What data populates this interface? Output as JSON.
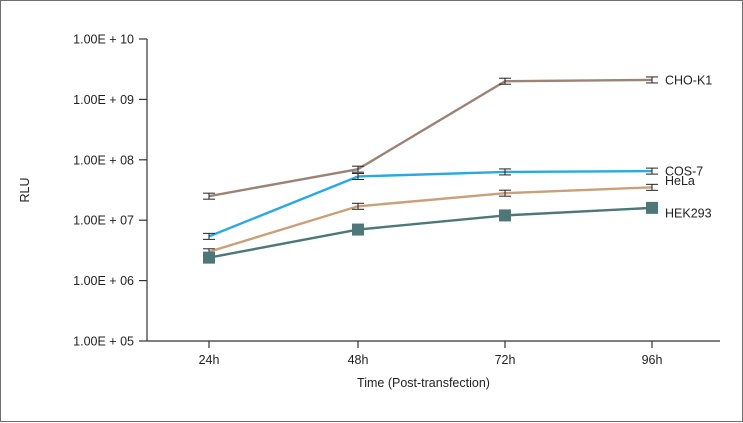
{
  "chart_data": {
    "type": "line",
    "title": "",
    "xlabel": "Time (Post-transfection)",
    "ylabel": "RLU",
    "y_scale": "log",
    "ylim": [
      100000,
      10000000000
    ],
    "categories": [
      "24h",
      "48h",
      "72h",
      "96h"
    ],
    "y_tick_values": [
      100000,
      1000000,
      10000000,
      100000000,
      1000000000,
      10000000000
    ],
    "y_tick_labels": [
      "1.00E + 05",
      "1.00E + 06",
      "1.00E + 07",
      "1.00E + 08",
      "1.00E + 09",
      "1.00E + 10"
    ],
    "grid": false,
    "series": [
      {
        "name": "CHO-K1",
        "values": [
          25000000,
          70000000,
          2000000000,
          2100000000
        ],
        "color": "#9b8378",
        "error_bars": true,
        "markers": false
      },
      {
        "name": "COS-7",
        "values": [
          5400000,
          53000000,
          63000000,
          65000000
        ],
        "color": "#2aa9e0",
        "error_bars": true,
        "markers": false
      },
      {
        "name": "HeLa",
        "values": [
          3000000,
          17000000,
          28000000,
          35000000
        ],
        "color": "#c9a079",
        "error_bars": true,
        "markers": false
      },
      {
        "name": "HEK293",
        "values": [
          2400000,
          7000000,
          12000000,
          16000000
        ],
        "color": "#4e7878",
        "error_bars": false,
        "markers": true
      }
    ]
  }
}
